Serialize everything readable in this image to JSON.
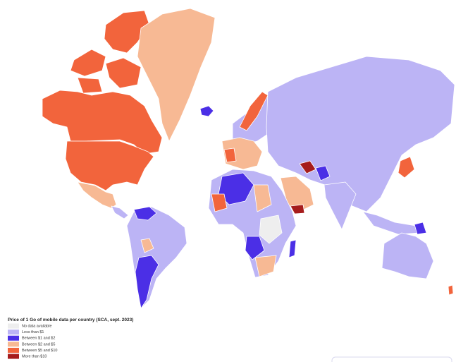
{
  "legend": {
    "title": "Price of 1 Go of mobile data per country (SCA, sept. 2023)",
    "items": [
      {
        "label": "No data available",
        "color": "#eeeeee"
      },
      {
        "label": "Less than $1",
        "color": "#bcb4f5"
      },
      {
        "label": "Between $1 and $2",
        "color": "#4b2fe6"
      },
      {
        "label": "Between $2 and $5",
        "color": "#f7b994"
      },
      {
        "label": "Between $5 and $10",
        "color": "#f2643c"
      },
      {
        "label": "More than $10",
        "color": "#a61c1c"
      }
    ]
  }
}
